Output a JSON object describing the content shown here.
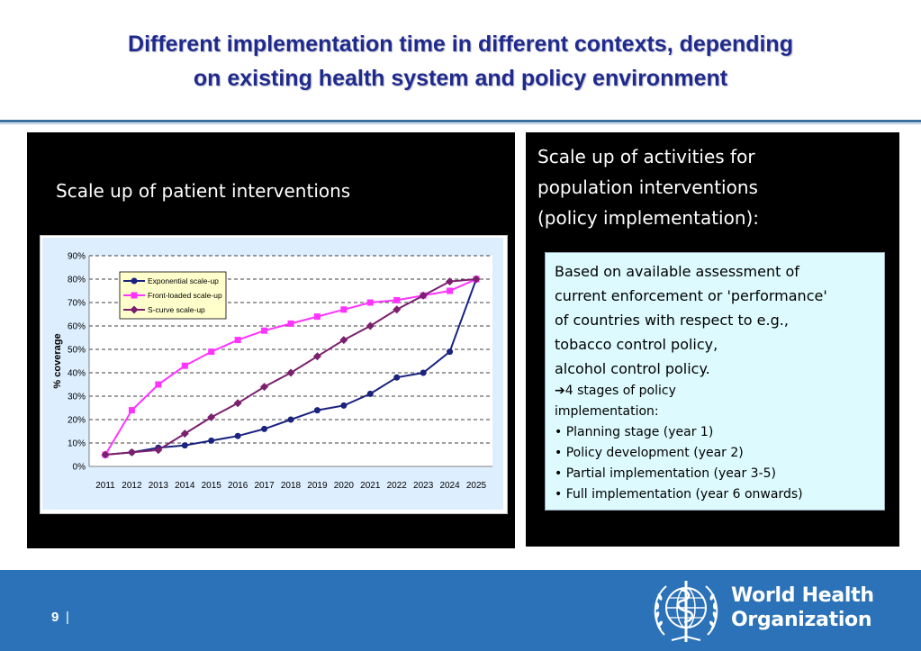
{
  "slide": {
    "title_line1": "Different implementation time in different contexts, depending",
    "title_line2": "on existing health system and policy environment"
  },
  "left_panel": {
    "title": "Scale up of patient interventions"
  },
  "right_panel": {
    "title_lines": [
      "Scale up of activities for",
      "population interventions",
      "(policy implementation):"
    ],
    "box_lines": [
      "Based on available assessment of",
      "current enforcement or 'performance'",
      "of countries with respect to e.g.,",
      "tobacco control policy,",
      "alcohol control policy."
    ],
    "arrow_symbol": "➔",
    "stages_text_1": "4 stages of policy",
    "stages_text_2": "implementation:",
    "stages": [
      "• Planning stage (year 1)",
      "• Policy development (year 2)",
      "• Partial implementation (year 3-5)",
      "• Full implementation (year 6 onwards)"
    ]
  },
  "footer": {
    "page_number": "9",
    "separator": "|",
    "org_line1": "World Health",
    "org_line2": "Organization",
    "logo_icon": "who-emblem-icon"
  },
  "colors": {
    "title": "#1f2a8c",
    "footer_bg": "#2b72b8",
    "exponential": "#1a237e",
    "front_loaded": "#ff33ff",
    "s_curve": "#7b1f6e"
  },
  "chart_data": {
    "type": "line",
    "x": [
      "2011",
      "2012",
      "2013",
      "2014",
      "2015",
      "2016",
      "2017",
      "2018",
      "2019",
      "2020",
      "2021",
      "2022",
      "2023",
      "2024",
      "2025"
    ],
    "ylabel": "% coverage",
    "ylim": [
      0,
      90
    ],
    "yticks": [
      "0%",
      "10%",
      "20%",
      "30%",
      "40%",
      "50%",
      "60%",
      "70%",
      "80%",
      "90%"
    ],
    "grid": "horizontal dashed",
    "legend_position": "top-left",
    "series": [
      {
        "name": "Exponential scale-up",
        "color": "#1a237e",
        "marker": "circle",
        "values": [
          5,
          6,
          8,
          9,
          11,
          13,
          16,
          20,
          24,
          26,
          31,
          38,
          40,
          49,
          80
        ]
      },
      {
        "name": "Front-loaded scale-up",
        "color": "#ff33ff",
        "marker": "square",
        "values": [
          5,
          24,
          35,
          43,
          49,
          54,
          58,
          61,
          64,
          67,
          70,
          71,
          73,
          75,
          80
        ]
      },
      {
        "name": "S-curve scale-up",
        "color": "#7b1f6e",
        "marker": "diamond",
        "values": [
          5,
          6,
          7,
          14,
          21,
          27,
          34,
          40,
          47,
          54,
          60,
          67,
          73,
          79,
          80
        ]
      }
    ]
  }
}
